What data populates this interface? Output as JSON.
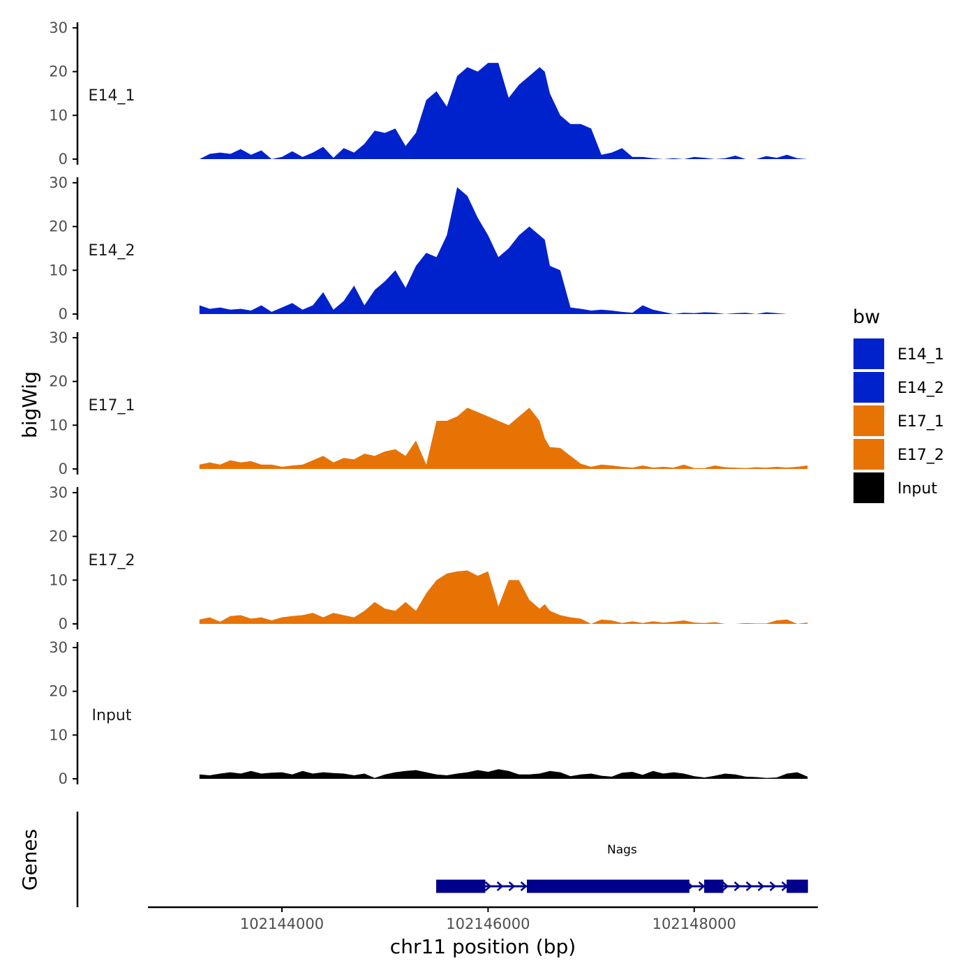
{
  "chart_data": {
    "type": "area",
    "ylabel": "bigWig",
    "xlabel": "chr11 position (bp)",
    "ylim": [
      0,
      30
    ],
    "y_ticks": [
      "0",
      "10",
      "20",
      "30"
    ],
    "xlim": [
      102142700,
      102149200
    ],
    "x_range_data": [
      102143200,
      102149100
    ],
    "x_ticks": [
      {
        "value": 102144000,
        "label": "102144000"
      },
      {
        "value": 102146000,
        "label": "102146000"
      },
      {
        "value": 102148000,
        "label": "102148000"
      }
    ],
    "legend": {
      "title": "bw",
      "items": [
        {
          "label": "E14_1",
          "color": "#0022cc"
        },
        {
          "label": "E14_2",
          "color": "#0022cc"
        },
        {
          "label": "E17_1",
          "color": "#e87305"
        },
        {
          "label": "E17_2",
          "color": "#e87305"
        },
        {
          "label": "Input",
          "color": "#000000"
        }
      ]
    },
    "series": [
      {
        "name": "E14_1",
        "color": "#0022cc",
        "x": [
          102143200,
          102143300,
          102143400,
          102143500,
          102143600,
          102143700,
          102143800,
          102143900,
          102144000,
          102144100,
          102144200,
          102144300,
          102144400,
          102144500,
          102144600,
          102144700,
          102144800,
          102144900,
          102145000,
          102145100,
          102145200,
          102145300,
          102145400,
          102145500,
          102145600,
          102145700,
          102145800,
          102145900,
          102146000,
          102146100,
          102146200,
          102146300,
          102146400,
          102146500,
          102146550,
          102146600,
          102146700,
          102146800,
          102146900,
          102147000,
          102147100,
          102147200,
          102147300,
          102147400,
          102147500,
          102147600,
          102147700,
          102147800,
          102147900,
          102148000,
          102148100,
          102148200,
          102148300,
          102148400,
          102148500,
          102148600,
          102148700,
          102148800,
          102148900,
          102149000,
          102149100
        ],
        "values": [
          0,
          1.2,
          1.5,
          1.2,
          2.3,
          1,
          2,
          0,
          0.5,
          1.8,
          0.5,
          1.5,
          2.8,
          0.3,
          2.5,
          1.5,
          3.5,
          6.5,
          6,
          7,
          3,
          6,
          13.5,
          15.5,
          12,
          19,
          21,
          20,
          22,
          22,
          14,
          17,
          19,
          21,
          20,
          15,
          10,
          8,
          8,
          7,
          1,
          1.5,
          2.5,
          0.5,
          0.5,
          0.2,
          0,
          0.2,
          0,
          0.5,
          0.3,
          0,
          0.2,
          0.8,
          0,
          0,
          0.7,
          0.3,
          1,
          0.2,
          0
        ]
      },
      {
        "name": "E14_2",
        "color": "#0022cc",
        "x": [
          102143200,
          102143300,
          102143400,
          102143500,
          102143600,
          102143700,
          102143800,
          102143900,
          102144000,
          102144100,
          102144200,
          102144300,
          102144400,
          102144500,
          102144600,
          102144700,
          102144800,
          102144900,
          102145000,
          102145100,
          102145200,
          102145300,
          102145400,
          102145500,
          102145600,
          102145700,
          102145800,
          102145900,
          102146000,
          102146100,
          102146200,
          102146300,
          102146400,
          102146500,
          102146550,
          102146600,
          102146700,
          102146800,
          102146900,
          102147000,
          102147100,
          102147200,
          102147300,
          102147400,
          102147500,
          102147600,
          102147700,
          102147800,
          102147900,
          102148000,
          102148100,
          102148200,
          102148300,
          102148400,
          102148500,
          102148600,
          102148700,
          102148800,
          102148900,
          102149000,
          102149100
        ],
        "values": [
          2,
          1.2,
          1.5,
          1,
          1.2,
          0.8,
          2,
          0.5,
          1.5,
          2.5,
          1,
          2,
          5,
          1,
          3,
          6.5,
          2,
          5.5,
          7.5,
          10,
          6,
          11,
          14,
          13,
          18,
          29,
          27,
          22,
          18,
          13,
          15,
          18,
          20,
          18,
          17,
          11,
          10,
          1.5,
          1.2,
          0.8,
          1,
          0.8,
          0.5,
          0.3,
          2,
          1,
          0.5,
          0,
          0.3,
          0.2,
          0.4,
          0.3,
          0,
          0.2,
          0.3,
          0,
          0.4,
          0.2,
          0,
          0,
          0
        ]
      },
      {
        "name": "E17_1",
        "color": "#e87305",
        "x": [
          102143200,
          102143300,
          102143400,
          102143500,
          102143600,
          102143700,
          102143800,
          102143900,
          102144000,
          102144100,
          102144200,
          102144300,
          102144400,
          102144500,
          102144600,
          102144700,
          102144800,
          102144900,
          102145000,
          102145100,
          102145200,
          102145300,
          102145400,
          102145500,
          102145600,
          102145700,
          102145800,
          102145900,
          102146000,
          102146100,
          102146200,
          102146300,
          102146400,
          102146500,
          102146550,
          102146600,
          102146700,
          102146800,
          102146900,
          102147000,
          102147100,
          102147200,
          102147300,
          102147400,
          102147500,
          102147600,
          102147700,
          102147800,
          102147900,
          102148000,
          102148100,
          102148200,
          102148300,
          102148400,
          102148500,
          102148600,
          102148700,
          102148800,
          102148900,
          102149000,
          102149100
        ],
        "values": [
          1,
          1.5,
          1,
          2,
          1.5,
          1.8,
          1,
          1,
          0.5,
          0.8,
          1,
          2,
          3,
          1.5,
          2.5,
          2.2,
          3.5,
          3,
          4,
          4.5,
          3,
          6.5,
          1,
          11,
          11,
          12,
          14,
          13,
          12,
          11,
          10,
          12,
          14,
          11,
          7,
          5,
          4.8,
          3,
          1.2,
          0.5,
          1,
          0.8,
          0.5,
          0.3,
          0.8,
          0.3,
          0.5,
          0.3,
          1,
          0.2,
          0.2,
          0.8,
          0.4,
          0.3,
          0.2,
          0.4,
          0.3,
          0.5,
          0.3,
          0.5,
          0.8
        ]
      },
      {
        "name": "E17_2",
        "color": "#e87305",
        "x": [
          102143200,
          102143300,
          102143400,
          102143500,
          102143600,
          102143700,
          102143800,
          102143900,
          102144000,
          102144100,
          102144200,
          102144300,
          102144400,
          102144500,
          102144600,
          102144700,
          102144800,
          102144900,
          102145000,
          102145100,
          102145200,
          102145300,
          102145400,
          102145500,
          102145600,
          102145700,
          102145800,
          102145900,
          102146000,
          102146100,
          102146200,
          102146300,
          102146400,
          102146500,
          102146550,
          102146600,
          102146700,
          102146800,
          102146900,
          102147000,
          102147100,
          102147200,
          102147300,
          102147400,
          102147500,
          102147600,
          102147700,
          102147800,
          102147900,
          102148000,
          102148100,
          102148200,
          102148300,
          102148400,
          102148500,
          102148600,
          102148700,
          102148800,
          102148900,
          102149000,
          102149100
        ],
        "values": [
          1,
          1.5,
          0.5,
          1.8,
          2,
          1.2,
          1.5,
          0.8,
          1.5,
          1.8,
          2,
          2.5,
          1.5,
          2.5,
          2,
          1.5,
          3,
          5,
          3.5,
          3,
          5,
          3,
          7,
          10,
          11.5,
          12,
          12.2,
          11,
          12,
          4,
          10,
          10,
          5.5,
          3.5,
          4.5,
          3,
          2,
          1.5,
          1.2,
          0,
          1,
          0.8,
          0.2,
          0.6,
          0.2,
          0.6,
          0.3,
          0.5,
          0.8,
          0.3,
          0.2,
          0.4,
          0,
          0,
          0.2,
          0.1,
          0.1,
          0.8,
          1,
          0,
          0.3
        ]
      },
      {
        "name": "Input",
        "color": "#000000",
        "x": [
          102143200,
          102143300,
          102143400,
          102143500,
          102143600,
          102143700,
          102143800,
          102143900,
          102144000,
          102144100,
          102144200,
          102144300,
          102144400,
          102144500,
          102144600,
          102144700,
          102144800,
          102144900,
          102145000,
          102145100,
          102145200,
          102145300,
          102145400,
          102145500,
          102145600,
          102145700,
          102145800,
          102145900,
          102146000,
          102146100,
          102146200,
          102146300,
          102146400,
          102146500,
          102146550,
          102146600,
          102146700,
          102146800,
          102146900,
          102147000,
          102147100,
          102147200,
          102147300,
          102147400,
          102147500,
          102147600,
          102147700,
          102147800,
          102147900,
          102148000,
          102148100,
          102148200,
          102148300,
          102148400,
          102148500,
          102148600,
          102148700,
          102148800,
          102148900,
          102149000,
          102149100
        ],
        "values": [
          1,
          0.8,
          1.2,
          1.5,
          1.2,
          1.8,
          1.2,
          1.4,
          1.5,
          1,
          1.8,
          1.2,
          1.5,
          1.3,
          1.2,
          0.8,
          1.2,
          0.2,
          1,
          1.5,
          1.8,
          2,
          1.5,
          1,
          0.8,
          1.2,
          1.5,
          2,
          1.6,
          2.2,
          1.8,
          1,
          1,
          1.2,
          1.5,
          1.8,
          1.5,
          0.6,
          1,
          1.2,
          0.7,
          0.5,
          1.4,
          1.6,
          0.9,
          1.8,
          1.2,
          1.5,
          1.2,
          0.6,
          0.3,
          0.7,
          1.2,
          1,
          0.5,
          0.4,
          0.2,
          0.3,
          1.2,
          1.5,
          0.5
        ]
      }
    ],
    "genes_label": "Genes",
    "genes": [
      {
        "name": "Nags",
        "start": 102145500,
        "end": 102149100,
        "strand": "+",
        "exons": [
          [
            102145500,
            102145970
          ],
          [
            102146380,
            102146850
          ],
          [
            102146850,
            102147200
          ],
          [
            102147200,
            102147950
          ],
          [
            102148100,
            102148280
          ],
          [
            102148900,
            102149100
          ]
        ]
      }
    ]
  }
}
